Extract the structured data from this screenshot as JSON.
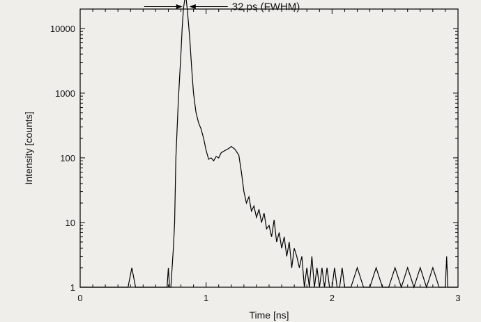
{
  "chart_data": {
    "type": "line",
    "xlabel": "Time [ns]",
    "ylabel": "Intensity [counts]",
    "xlim": [
      0,
      3
    ],
    "ylim": [
      1,
      50000
    ],
    "y_scale": "log",
    "x_ticks": [
      0,
      1,
      2,
      3
    ],
    "x_tick_labels": [
      "0",
      "1",
      "2",
      "3"
    ],
    "y_ticks": [
      1,
      10,
      100,
      1000,
      10000
    ],
    "y_tick_labels": [
      "1",
      "10",
      "100",
      "1000",
      "10000"
    ],
    "grid": false,
    "annotation": {
      "text": "32 ps (FWHM)",
      "peak_x": 0.84,
      "peak_y": 30000
    },
    "series": [
      {
        "x": [
          0,
          0.38,
          0.41,
          0.44,
          0.48,
          0.49,
          0.5,
          0.69,
          0.7,
          0.71,
          0.72,
          0.73,
          0.74,
          0.75,
          0.76,
          0.78,
          0.8,
          0.81,
          0.82,
          0.83,
          0.84,
          0.85,
          0.86,
          0.87,
          0.88,
          0.89,
          0.9,
          0.91,
          0.92,
          0.94,
          0.96,
          0.98,
          1.0,
          1.02,
          1.04,
          1.06,
          1.08,
          1.1,
          1.12,
          1.15,
          1.18,
          1.2,
          1.23,
          1.26,
          1.28,
          1.3,
          1.32,
          1.34,
          1.36,
          1.38,
          1.4,
          1.42,
          1.44,
          1.46,
          1.48,
          1.5,
          1.52,
          1.54,
          1.56,
          1.58,
          1.6,
          1.62,
          1.64,
          1.66,
          1.68,
          1.7,
          1.72,
          1.74,
          1.76,
          1.78,
          1.8,
          1.82,
          1.84,
          1.86,
          1.88,
          1.9,
          1.92,
          1.94,
          1.96,
          1.98,
          2.0,
          2.02,
          2.04,
          2.06,
          2.08,
          2.1,
          2.15,
          2.2,
          2.25,
          2.3,
          2.35,
          2.4,
          2.45,
          2.5,
          2.55,
          2.6,
          2.65,
          2.7,
          2.75,
          2.8,
          2.85,
          2.9,
          2.91,
          2.92,
          3.0
        ],
        "y": [
          1,
          1,
          2,
          1,
          1,
          1,
          1,
          1,
          2,
          1,
          1,
          2,
          4,
          10,
          100,
          800,
          4000,
          10000,
          20000,
          28000,
          30000,
          20000,
          12000,
          7000,
          3500,
          1800,
          1000,
          700,
          500,
          350,
          280,
          200,
          130,
          95,
          100,
          90,
          105,
          100,
          120,
          130,
          140,
          150,
          135,
          110,
          60,
          30,
          20,
          25,
          15,
          18,
          12,
          16,
          10,
          14,
          8,
          9,
          6,
          11,
          5,
          7,
          4,
          6,
          3,
          5,
          2,
          4,
          3,
          2,
          3,
          1,
          2,
          1,
          3,
          1,
          2,
          1,
          2,
          1,
          2,
          1,
          1,
          2,
          1,
          1,
          2,
          1,
          1,
          2,
          1,
          1,
          2,
          1,
          1,
          2,
          1,
          2,
          1,
          2,
          1,
          2,
          1,
          1,
          3,
          1,
          1
        ]
      }
    ]
  }
}
